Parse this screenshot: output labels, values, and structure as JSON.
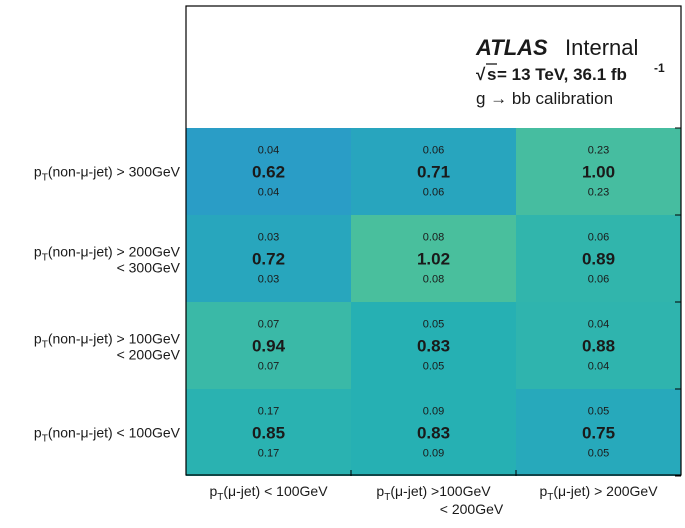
{
  "chart_data": {
    "type": "heatmap",
    "annotation": {
      "experiment": "ATLAS",
      "status": "Internal",
      "sqrt_s": "s",
      "energy": " = 13 TeV, 36.1 fb",
      "energy_sup": "-1",
      "calibration": "g → bb calibration"
    },
    "x_categories": [
      {
        "prefix": "p",
        "sub": "T",
        "rest": "(μ-jet) < 100GeV",
        "line2": ""
      },
      {
        "prefix": "p",
        "sub": "T",
        "rest": "(μ-jet)  >100GeV",
        "line2": "< 200GeV"
      },
      {
        "prefix": "p",
        "sub": "T",
        "rest": "(μ-jet) > 200GeV",
        "line2": ""
      }
    ],
    "y_categories": [
      {
        "prefix": "p",
        "sub": "T",
        "rest": "(non-μ-jet) > 300GeV",
        "line2": ""
      },
      {
        "prefix": "p",
        "sub": "T",
        "rest": "(non-μ-jet) > 200GeV",
        "line2": "< 300GeV"
      },
      {
        "prefix": "p",
        "sub": "T",
        "rest": "(non-μ-jet) > 100GeV",
        "line2": "< 200GeV"
      },
      {
        "prefix": "p",
        "sub": "T",
        "rest": "(non-μ-jet) < 100GeV",
        "line2": ""
      }
    ],
    "values": [
      [
        0.62,
        0.71,
        1.0
      ],
      [
        0.72,
        1.02,
        0.89
      ],
      [
        0.94,
        0.83,
        0.88
      ],
      [
        0.85,
        0.83,
        0.75
      ]
    ],
    "uncertainty_up": [
      [
        0.04,
        0.06,
        0.23
      ],
      [
        0.03,
        0.08,
        0.06
      ],
      [
        0.07,
        0.05,
        0.04
      ],
      [
        0.17,
        0.09,
        0.05
      ]
    ],
    "uncertainty_down": [
      [
        0.04,
        0.06,
        0.23
      ],
      [
        0.03,
        0.08,
        0.06
      ],
      [
        0.07,
        0.05,
        0.04
      ],
      [
        0.17,
        0.09,
        0.05
      ]
    ],
    "colors": {
      "low": "#2b9bc8",
      "mid": "#25b0b4",
      "high": "#4fc19a",
      "frame": "#000000",
      "background": "#ffffff"
    },
    "color_range": [
      0.6,
      1.05
    ]
  }
}
